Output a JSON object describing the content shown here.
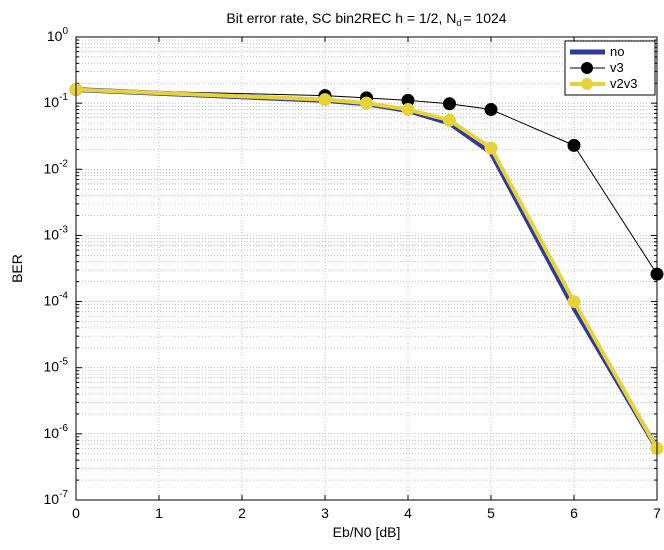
{
  "chart_data": {
    "type": "line",
    "title": "Bit error rate, SC bin2REC h = 1/2, N",
    "title_subscript": "d",
    "title_suffix": "= 1024",
    "xlabel": "Eb/N0 [dB]",
    "ylabel": "BER",
    "xlim": [
      0,
      7
    ],
    "ylim": [
      1e-07,
      1
    ],
    "yscale": "log",
    "grid": true,
    "legend_position": "top-right",
    "x_ticks": [
      0,
      1,
      2,
      3,
      4,
      5,
      6,
      7
    ],
    "y_tick_exponents": [
      0,
      -1,
      -2,
      -3,
      -4,
      -5,
      -6,
      -7
    ],
    "series": [
      {
        "name": "no",
        "color": "#2e3a97",
        "style": "thick-line",
        "x": [
          0,
          3,
          3.5,
          4,
          4.5,
          5,
          6,
          7
        ],
        "y": [
          0.16,
          0.11,
          0.098,
          0.077,
          0.05,
          0.018,
          8e-05,
          6e-07
        ]
      },
      {
        "name": "v3",
        "color": "#000000",
        "style": "thin-line-markers",
        "x": [
          0,
          3,
          3.5,
          4,
          4.5,
          5,
          6,
          7
        ],
        "y": [
          0.16,
          0.13,
          0.12,
          0.11,
          0.098,
          0.08,
          0.023,
          0.00026
        ]
      },
      {
        "name": "v2v3",
        "color": "#e6d23a",
        "style": "thick-line-markers",
        "x": [
          0,
          3,
          3.5,
          4,
          4.5,
          5,
          6,
          7
        ],
        "y": [
          0.16,
          0.113,
          0.1,
          0.08,
          0.055,
          0.021,
          0.0001,
          6e-07
        ]
      }
    ]
  }
}
